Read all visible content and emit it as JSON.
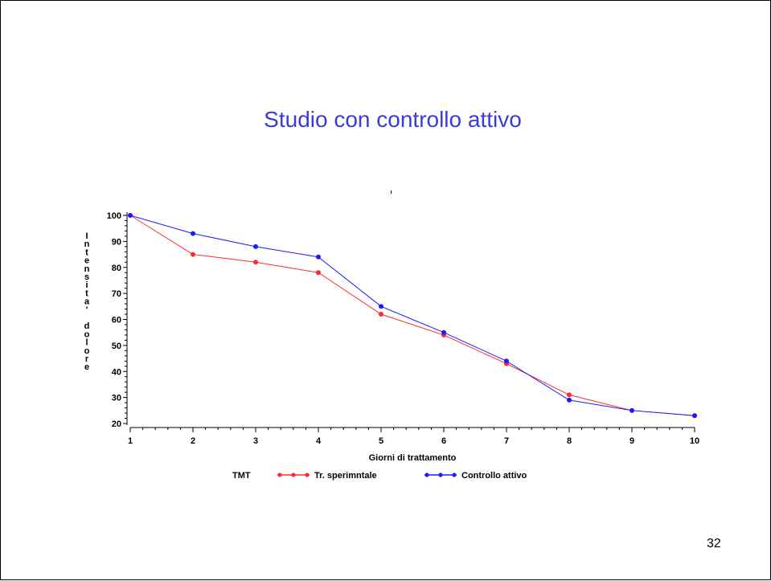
{
  "slide": {
    "title": "Studio con controllo attivo",
    "page_number": "32"
  },
  "chart_data": {
    "type": "line",
    "title": "",
    "xlabel": "Giorni di trattamento",
    "ylabel": "Intensita' dolore",
    "x": [
      1,
      2,
      3,
      4,
      5,
      6,
      7,
      8,
      9,
      10
    ],
    "xlim": [
      1,
      10
    ],
    "ylim": [
      20,
      100
    ],
    "yticks": [
      20,
      30,
      40,
      50,
      60,
      70,
      80,
      90,
      100
    ],
    "grid": false,
    "legend": {
      "title": "TMT",
      "placement": "bottom"
    },
    "series": [
      {
        "name": "Tr. sperimntale",
        "color": "#ff2a2a",
        "values": [
          100,
          85,
          82,
          78,
          62,
          54,
          43,
          31,
          25,
          23
        ]
      },
      {
        "name": "Controllo attivo",
        "color": "#1a1aff",
        "values": [
          100,
          93,
          88,
          84,
          65,
          55,
          44,
          29,
          25,
          23
        ]
      }
    ]
  }
}
